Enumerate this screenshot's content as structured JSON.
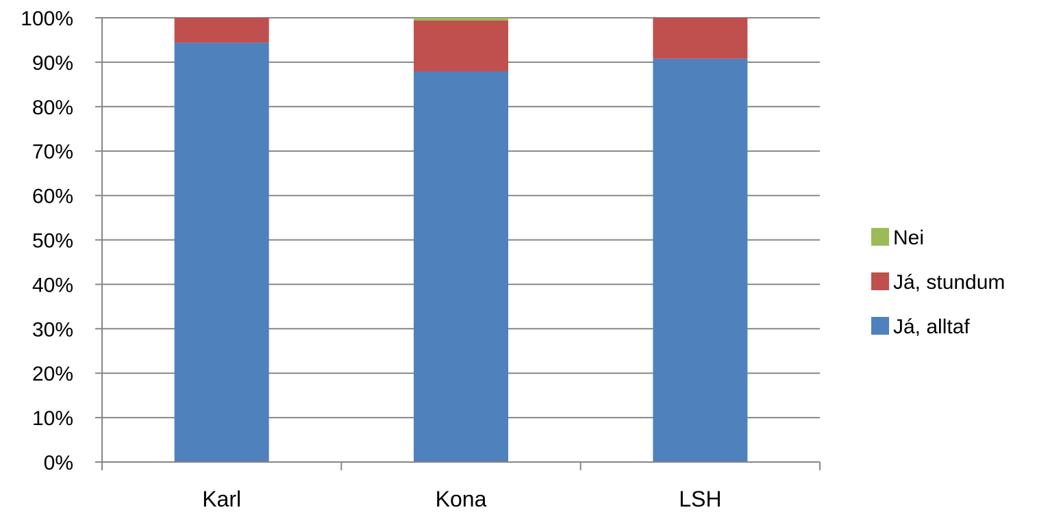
{
  "chart_data": {
    "type": "bar",
    "stacked": true,
    "percent": true,
    "categories": [
      "Karl",
      "Kona",
      "LSH"
    ],
    "series": [
      {
        "name": "Já, alltaf",
        "color": "#4F81BD",
        "values": [
          94.4,
          87.9,
          90.8
        ]
      },
      {
        "name": "Já, stundum",
        "color": "#C0504D",
        "values": [
          5.6,
          11.5,
          9.2
        ]
      },
      {
        "name": "Nei",
        "color": "#9BBB59",
        "values": [
          0.0,
          0.6,
          0.0
        ]
      }
    ],
    "ylim": [
      0,
      100
    ],
    "yticks": [
      "0%",
      "10%",
      "20%",
      "30%",
      "40%",
      "50%",
      "60%",
      "70%",
      "80%",
      "90%",
      "100%"
    ],
    "grid": true,
    "legend_position": "right",
    "legend_order": [
      "Nei",
      "Já, stundum",
      "Já, alltaf"
    ],
    "title": "",
    "xlabel": "",
    "ylabel": ""
  }
}
